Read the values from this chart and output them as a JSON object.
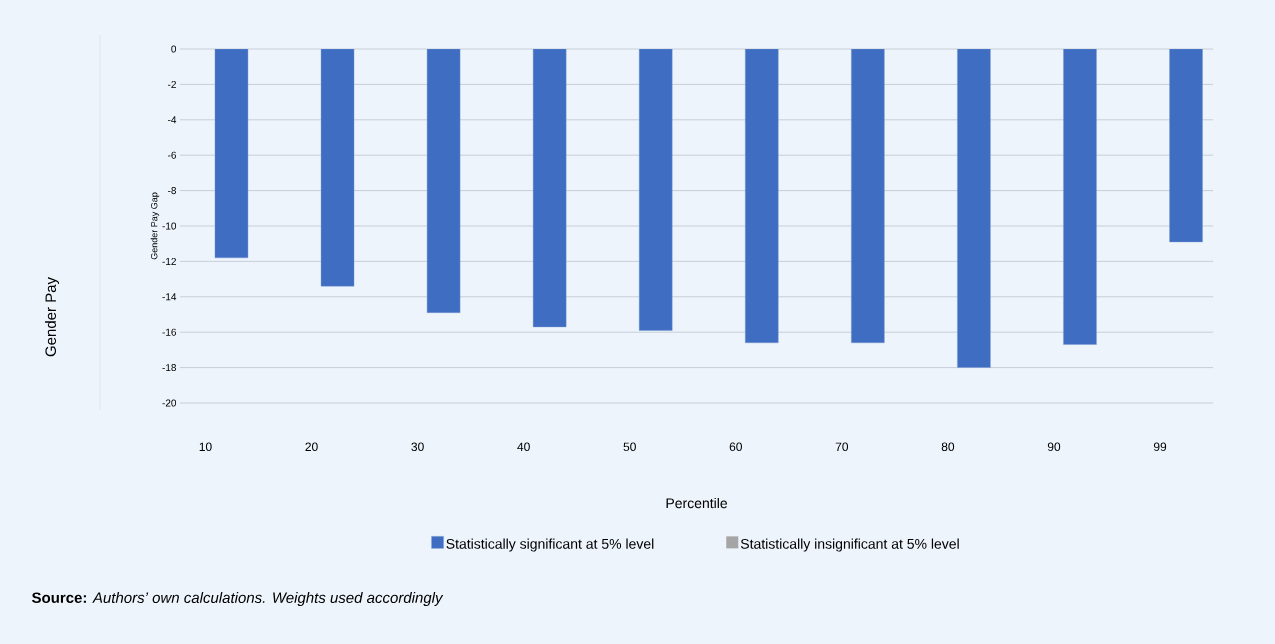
{
  "chart_data": {
    "type": "bar",
    "categories": [
      "10",
      "20",
      "30",
      "40",
      "50",
      "60",
      "70",
      "80",
      "90",
      "99"
    ],
    "series": [
      {
        "name": "Statistically significant at 5% level",
        "color": "#3f6dc2",
        "values": [
          -11.8,
          -13.4,
          -14.9,
          -15.7,
          -15.9,
          -16.6,
          -16.6,
          -18.0,
          -16.7,
          -10.9
        ]
      },
      {
        "name": "Statistically insignificant at 5% level",
        "color": "#a5a5a5",
        "values": [
          null,
          null,
          null,
          null,
          null,
          null,
          null,
          null,
          null,
          null
        ]
      }
    ],
    "xlabel": "Percentile",
    "ylabel": "Gender Pay Gap",
    "ylim": [
      -20,
      0
    ],
    "yticks": [
      -20,
      -18,
      -16,
      -14,
      -12,
      -10,
      -8,
      -6,
      -4,
      -2,
      0
    ],
    "grid": "y",
    "legend": "bottom",
    "annotations": [
      "Gender Pay",
      "**Source:** *Authors’ own calculations. Weights used accordingly*"
    ]
  }
}
